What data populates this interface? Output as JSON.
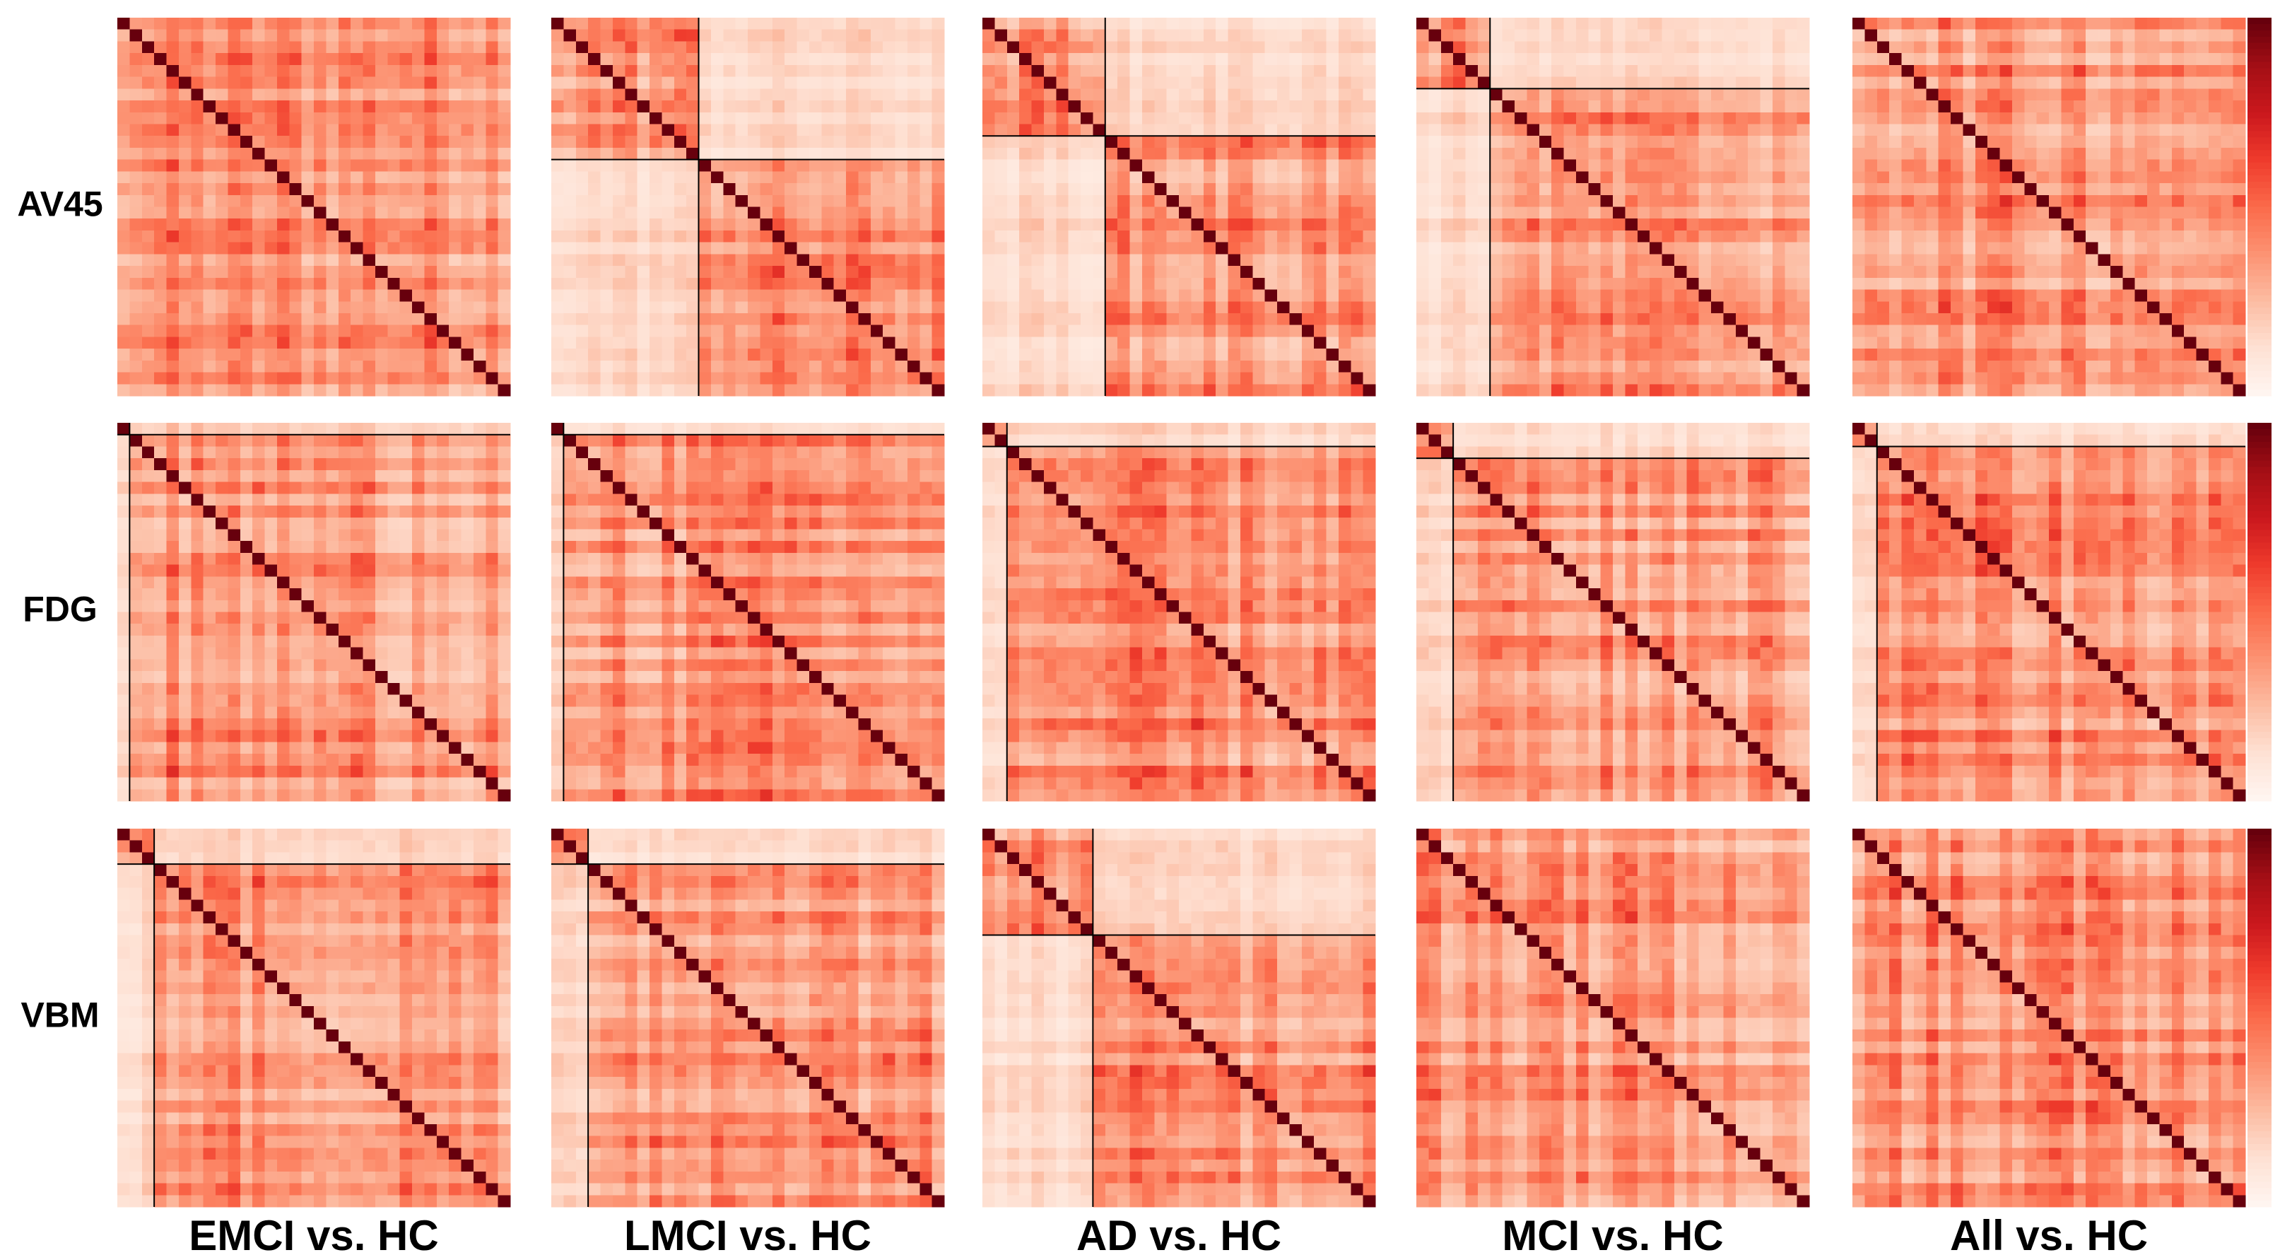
{
  "row_labels": [
    "AV45",
    "FDG",
    "VBM"
  ],
  "column_labels": [
    "EMCI vs. HC",
    "LMCI vs. HC",
    "AD vs. HC",
    "MCI vs. HC",
    "All vs. HC"
  ]
}
